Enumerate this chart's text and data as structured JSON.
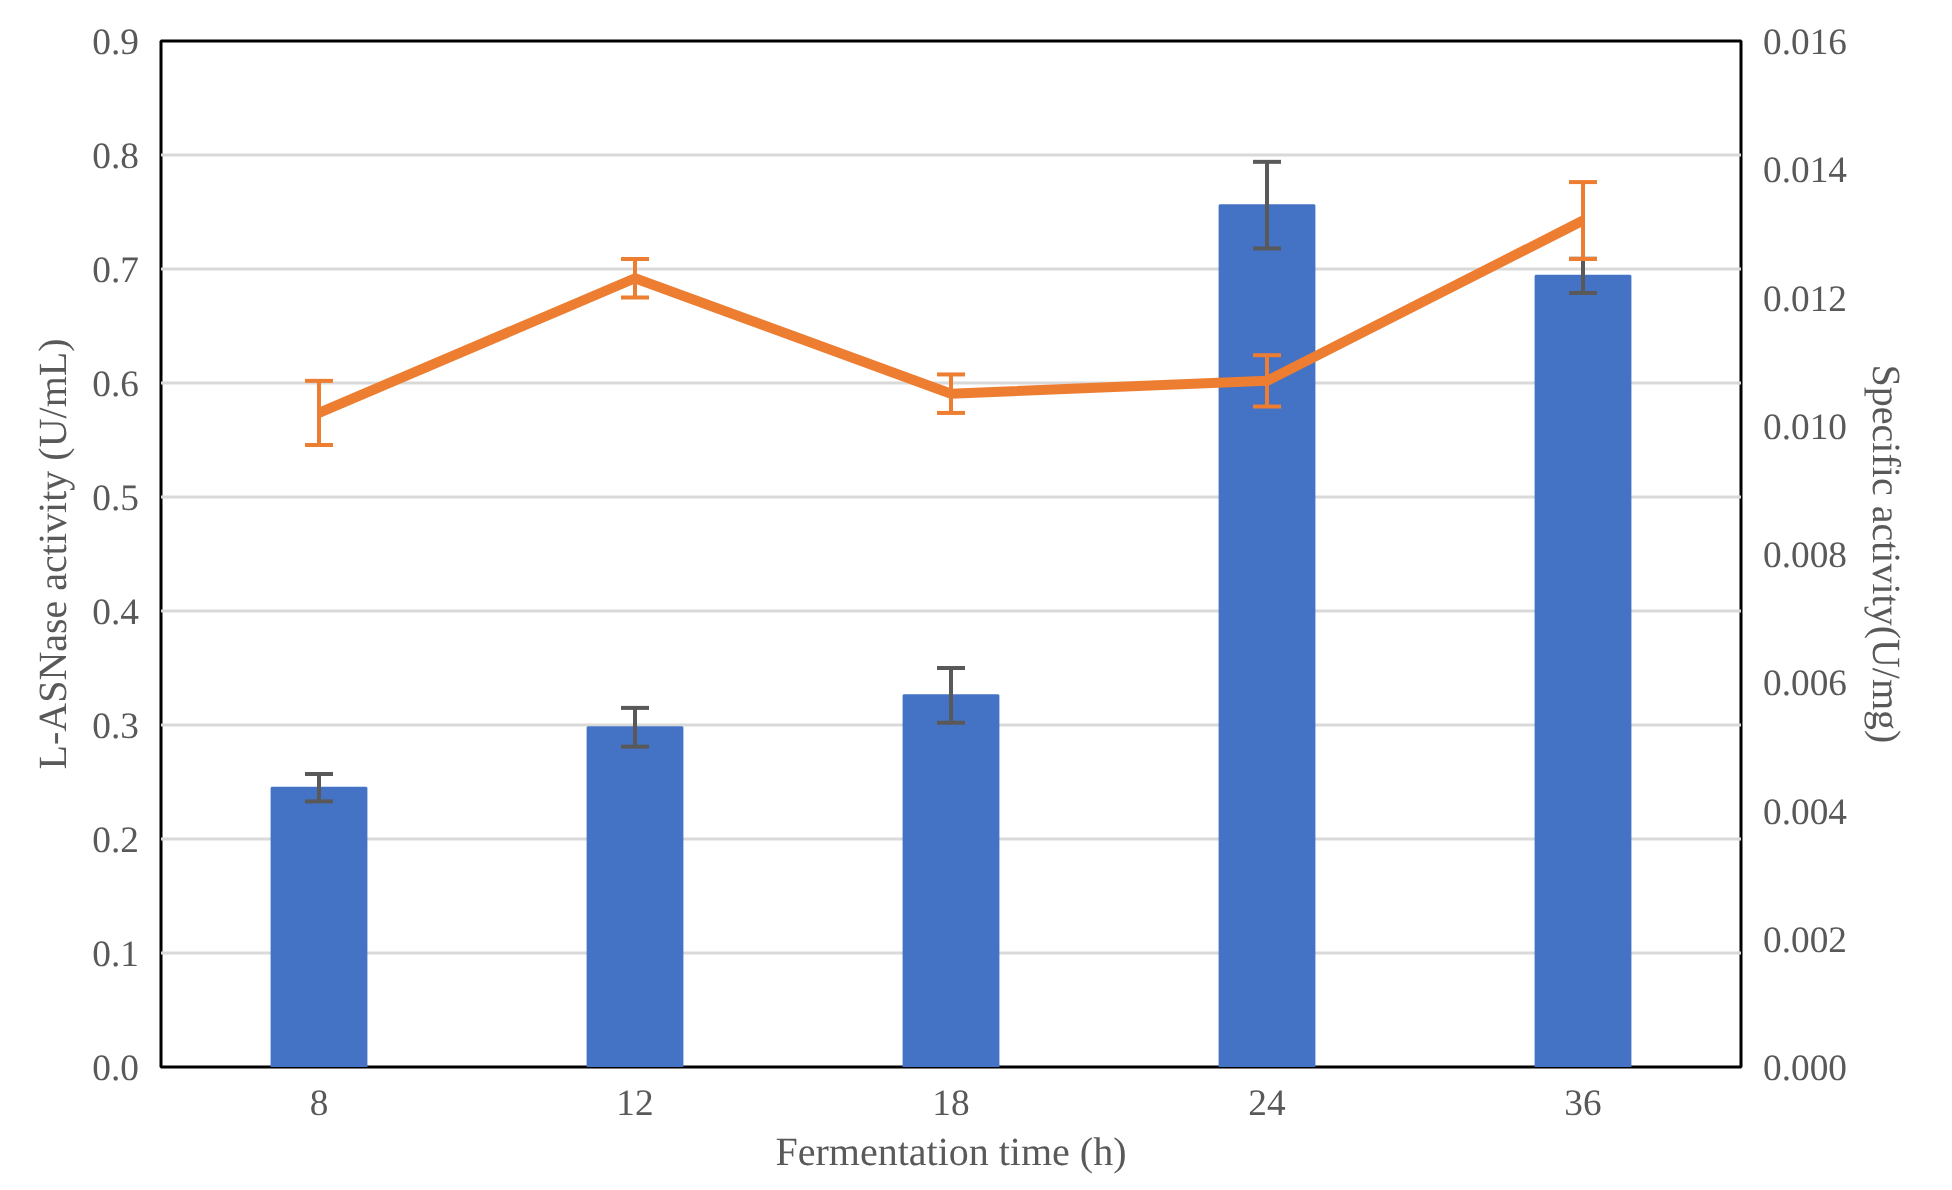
{
  "chart_data": {
    "type": "bar",
    "xlabel": "Fermentation time (h)",
    "ylabel": "L-ASNase activity (U/mL)",
    "y2label": "Specific activity(U/mg)",
    "categories": [
      "8",
      "12",
      "18",
      "24",
      "36"
    ],
    "series": [
      {
        "color": "#4472c4",
        "values": [
          0.245,
          0.298,
          0.326,
          0.756,
          0.694
        ],
        "errors": [
          0.012,
          0.017,
          0.024,
          0.038,
          0.015
        ]
      },
      {
        "type": "line",
        "axis": "y2",
        "color": "#ed7d31",
        "values": [
          0.0102,
          0.0123,
          0.0105,
          0.0107,
          0.0132
        ],
        "errors": [
          0.0005,
          0.0003,
          0.0003,
          0.0004,
          0.0006
        ]
      }
    ],
    "ylim": [
      0,
      0.9
    ],
    "yticks": [
      {
        "value": 0,
        "label": "0.0"
      },
      {
        "value": 0.1,
        "label": "0.1"
      },
      {
        "value": 0.2,
        "label": "0.2"
      },
      {
        "value": 0.3,
        "label": "0.3"
      },
      {
        "value": 0.4,
        "label": "0.4"
      },
      {
        "value": 0.5,
        "label": "0.5"
      },
      {
        "value": 0.6,
        "label": "0.6"
      },
      {
        "value": 0.7,
        "label": "0.7"
      },
      {
        "value": 0.8,
        "label": "0.8"
      },
      {
        "value": 0.9,
        "label": "0.9"
      }
    ],
    "y2lim": [
      0,
      0.016
    ],
    "y2ticks": [
      {
        "value": 0,
        "label": "0.000"
      },
      {
        "value": 0.002,
        "label": "0.002"
      },
      {
        "value": 0.004,
        "label": "0.004"
      },
      {
        "value": 0.006,
        "label": "0.006"
      },
      {
        "value": 0.008,
        "label": "0.008"
      },
      {
        "value": 0.01,
        "label": "0.010"
      },
      {
        "value": 0.012,
        "label": "0.012"
      },
      {
        "value": 0.014,
        "label": "0.014"
      },
      {
        "value": 0.016,
        "label": "0.016"
      }
    ],
    "grid": "y",
    "marker": "none",
    "line_style": "solid"
  }
}
